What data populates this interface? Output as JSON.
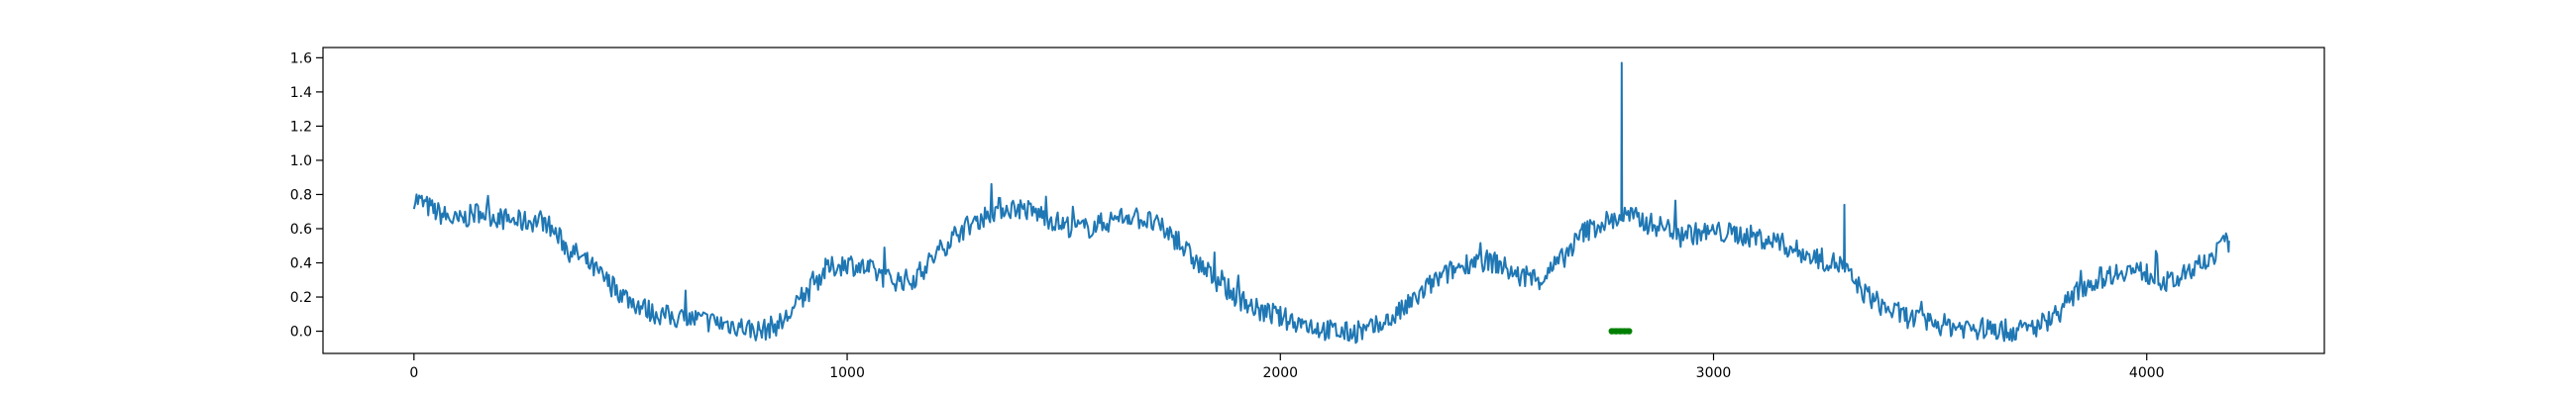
{
  "chart_data": {
    "type": "line",
    "title": "",
    "xlabel": "",
    "ylabel": "",
    "xlim": [
      -210,
      4410
    ],
    "ylim": [
      -0.13,
      1.66
    ],
    "xticks": [
      0,
      1000,
      2000,
      3000,
      4000
    ],
    "xtick_labels": [
      "0",
      "1000",
      "2000",
      "3000",
      "4000"
    ],
    "yticks": [
      0.0,
      0.2,
      0.4,
      0.6,
      0.8,
      1.0,
      1.2,
      1.4,
      1.6
    ],
    "ytick_labels": [
      "0.0",
      "0.2",
      "0.4",
      "0.6",
      "0.8",
      "1.0",
      "1.2",
      "1.4",
      "1.6"
    ],
    "grid": false,
    "legend": "none",
    "series": [
      {
        "color": "#1f77b4",
        "x": [
          0,
          50,
          100,
          150,
          200,
          250,
          300,
          350,
          400,
          450,
          500,
          550,
          600,
          650,
          700,
          750,
          800,
          850,
          900,
          950,
          1000,
          1050,
          1100,
          1150,
          1200,
          1250,
          1300,
          1350,
          1400,
          1450,
          1500,
          1550,
          1600,
          1650,
          1700,
          1750,
          1800,
          1850,
          1900,
          1950,
          2000,
          2050,
          2100,
          2150,
          2200,
          2250,
          2300,
          2350,
          2400,
          2450,
          2500,
          2550,
          2600,
          2650,
          2700,
          2750,
          2780,
          2800,
          2850,
          2900,
          2950,
          3000,
          3050,
          3100,
          3150,
          3200,
          3250,
          3280,
          3300,
          3320,
          3350,
          3400,
          3450,
          3500,
          3550,
          3600,
          3650,
          3700,
          3750,
          3800,
          3850,
          3900,
          3950,
          4000,
          4050,
          4100,
          4150,
          4190
        ],
        "y": [
          0.78,
          0.7,
          0.64,
          0.7,
          0.66,
          0.64,
          0.65,
          0.5,
          0.4,
          0.28,
          0.18,
          0.11,
          0.08,
          0.07,
          0.05,
          0.03,
          0.0,
          0.05,
          0.2,
          0.36,
          0.4,
          0.36,
          0.3,
          0.3,
          0.43,
          0.57,
          0.65,
          0.72,
          0.72,
          0.68,
          0.62,
          0.6,
          0.64,
          0.68,
          0.64,
          0.56,
          0.42,
          0.3,
          0.2,
          0.12,
          0.08,
          0.05,
          0.01,
          -0.01,
          0.0,
          0.06,
          0.16,
          0.28,
          0.36,
          0.42,
          0.4,
          0.32,
          0.3,
          0.42,
          0.58,
          0.64,
          0.66,
          0.68,
          0.63,
          0.6,
          0.57,
          0.58,
          0.57,
          0.55,
          0.52,
          0.46,
          0.42,
          0.4,
          0.38,
          0.3,
          0.22,
          0.13,
          0.08,
          0.05,
          0.03,
          0.02,
          0.01,
          0.0,
          0.03,
          0.12,
          0.26,
          0.32,
          0.36,
          0.34,
          0.28,
          0.34,
          0.44,
          0.53
        ],
        "spikes": [
          {
            "x": 2788,
            "y": 1.57
          },
          {
            "x": 3302,
            "y": 0.74
          }
        ]
      },
      {
        "color": "#008000",
        "x": [
          2765,
          2775,
          2785,
          2795,
          2805
        ],
        "y": [
          0.0,
          0.0,
          0.0,
          0.0,
          0.0
        ]
      }
    ]
  }
}
